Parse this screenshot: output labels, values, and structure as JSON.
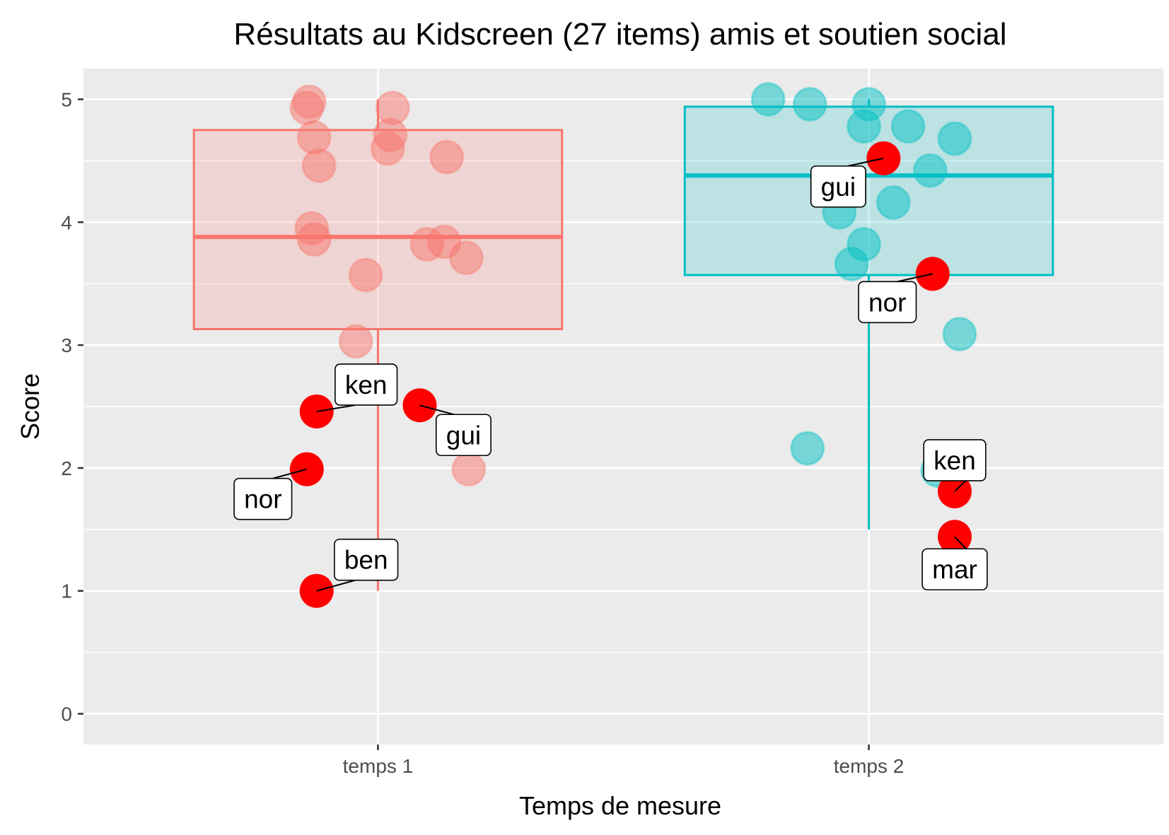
{
  "chart_data": {
    "type": "box",
    "title": "Résultats au Kidscreen (27 items) amis et soutien social",
    "xlabel": "Temps de mesure",
    "ylabel": "Score",
    "ylim": [
      -0.25,
      5.25
    ],
    "yticks": [
      0,
      1,
      2,
      3,
      4,
      5
    ],
    "categories": [
      "temps 1",
      "temps 2"
    ],
    "grid": true,
    "legend": "none",
    "highlight_color": "#ff0000",
    "groups": [
      {
        "category": "temps 1",
        "color": "#f8766d",
        "box": {
          "min": 1.0,
          "q1": 3.13,
          "median": 3.88,
          "q3": 4.75,
          "max": 5.0
        },
        "points": [
          {
            "x": 0.86,
            "y": 4.98
          },
          {
            "x": 0.855,
            "y": 4.93
          },
          {
            "x": 1.03,
            "y": 4.93
          },
          {
            "x": 0.87,
            "y": 4.69
          },
          {
            "x": 1.025,
            "y": 4.71
          },
          {
            "x": 1.02,
            "y": 4.6
          },
          {
            "x": 0.88,
            "y": 4.46
          },
          {
            "x": 1.14,
            "y": 4.53
          },
          {
            "x": 0.865,
            "y": 3.95
          },
          {
            "x": 0.87,
            "y": 3.86
          },
          {
            "x": 1.1,
            "y": 3.82
          },
          {
            "x": 1.135,
            "y": 3.84
          },
          {
            "x": 1.18,
            "y": 3.71
          },
          {
            "x": 0.975,
            "y": 3.57
          },
          {
            "x": 0.955,
            "y": 3.03
          },
          {
            "x": 1.185,
            "y": 1.99
          }
        ],
        "highlighted": [
          {
            "label": "ken",
            "x": 0.875,
            "y": 2.46
          },
          {
            "label": "gui",
            "x": 1.085,
            "y": 2.51
          },
          {
            "label": "nor",
            "x": 0.855,
            "y": 1.99
          },
          {
            "label": "ben",
            "x": 0.875,
            "y": 1.0
          }
        ]
      },
      {
        "category": "temps 2",
        "color": "#00bfc4",
        "box": {
          "min": 1.5,
          "q1": 3.57,
          "median": 4.38,
          "q3": 4.94,
          "max": 5.0
        },
        "points": [
          {
            "x": 1.795,
            "y": 5.0
          },
          {
            "x": 1.88,
            "y": 4.96
          },
          {
            "x": 2.0,
            "y": 4.96
          },
          {
            "x": 1.99,
            "y": 4.78
          },
          {
            "x": 2.08,
            "y": 4.78
          },
          {
            "x": 2.175,
            "y": 4.68
          },
          {
            "x": 2.125,
            "y": 4.42
          },
          {
            "x": 2.05,
            "y": 4.16
          },
          {
            "x": 1.94,
            "y": 4.08
          },
          {
            "x": 1.99,
            "y": 3.82
          },
          {
            "x": 1.965,
            "y": 3.66
          },
          {
            "x": 2.185,
            "y": 3.09
          },
          {
            "x": 1.875,
            "y": 2.16
          },
          {
            "x": 2.14,
            "y": 1.98
          }
        ],
        "highlighted": [
          {
            "label": "gui",
            "x": 2.03,
            "y": 4.52
          },
          {
            "label": "nor",
            "x": 2.13,
            "y": 3.58
          },
          {
            "label": "ken",
            "x": 2.175,
            "y": 1.81
          },
          {
            "label": "mar",
            "x": 2.175,
            "y": 1.44
          }
        ]
      }
    ]
  }
}
